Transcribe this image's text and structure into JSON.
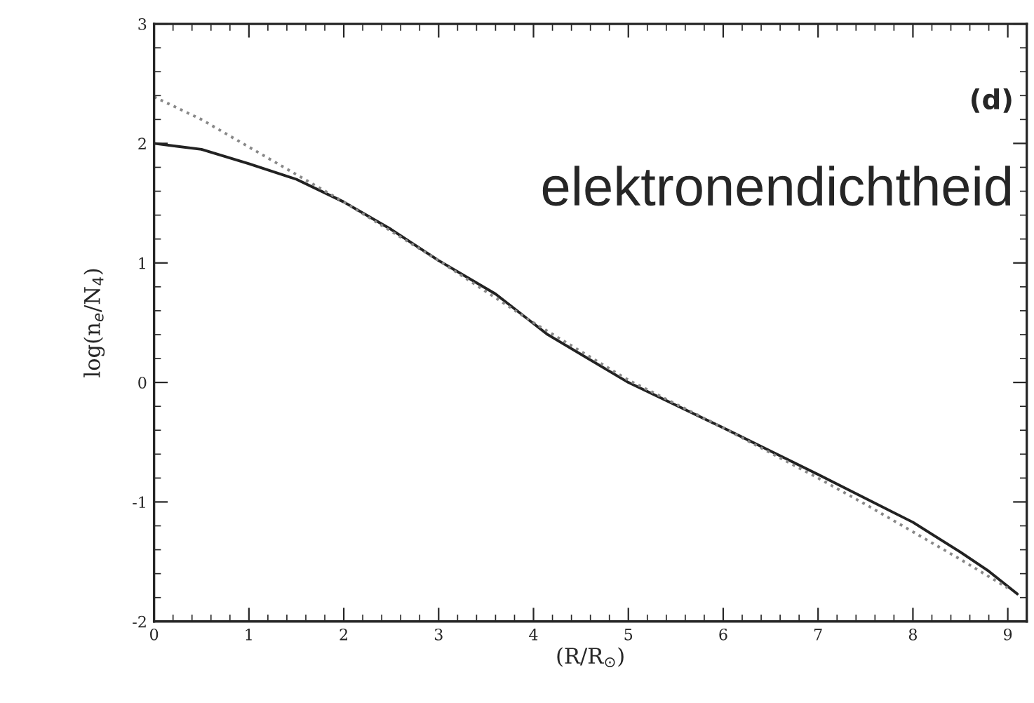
{
  "chart_data": {
    "type": "line",
    "xlabel": "(R/R$_{⊙}$)",
    "ylabel": "log(n$_{e}$/N$_{4}$)",
    "annotations": [
      "(d)",
      "elektronendichtheid"
    ],
    "xlim": [
      0,
      9.2
    ],
    "ylim": [
      -2,
      3
    ],
    "xticks": [
      0,
      1,
      2,
      3,
      4,
      5,
      6,
      7,
      8,
      9
    ],
    "yticks": [
      -2,
      -1,
      0,
      1,
      2,
      3
    ],
    "grid": false,
    "legend": false,
    "series": [
      {
        "color": "#222222",
        "line_style": "solid",
        "x": [
          0,
          0.5,
          1,
          1.5,
          2,
          2.5,
          3,
          3.6,
          4.15,
          5,
          6,
          7,
          8,
          8.5,
          8.8,
          9.1
        ],
        "values": [
          2.0,
          1.95,
          1.83,
          1.7,
          1.51,
          1.28,
          1.02,
          0.74,
          0.4,
          0.0,
          -0.38,
          -0.77,
          -1.17,
          -1.42,
          -1.58,
          -1.77
        ]
      },
      {
        "color": "#888888",
        "line_style": "dotted",
        "x": [
          0,
          0.5,
          1,
          1.5,
          2,
          3,
          4,
          5,
          6,
          7,
          7.5,
          8,
          8.5,
          9
        ],
        "values": [
          2.39,
          2.2,
          1.97,
          1.74,
          1.51,
          1.02,
          0.5,
          0.02,
          -0.38,
          -0.8,
          -1.02,
          -1.25,
          -1.48,
          -1.72
        ]
      }
    ]
  }
}
